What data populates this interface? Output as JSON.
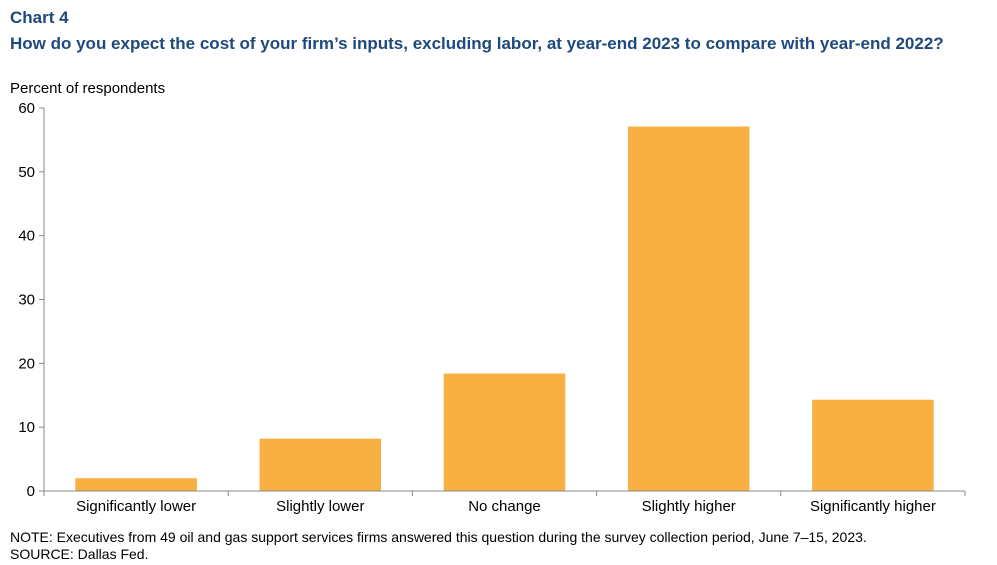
{
  "header": {
    "chart_label": "Chart 4",
    "title": "How do you expect the cost of your firm’s inputs, excluding labor, at year-end 2023 to compare with year-end 2022?"
  },
  "footer": {
    "note": "NOTE: Executives from 49 oil and gas support services firms answered this question during the survey collection period, June 7–15, 2023.",
    "source": "SOURCE: Dallas Fed."
  },
  "colors": {
    "bar": "#f8b043",
    "title": "#1f497d",
    "axis": "#888888"
  },
  "chart_data": {
    "type": "bar",
    "title": "How do you expect the cost of your firm’s inputs, excluding labor, at year-end 2023 to compare with year-end 2022?",
    "ylabel": "Percent of respondents",
    "xlabel": "",
    "categories": [
      "Significantly lower",
      "Slightly lower",
      "No change",
      "Slightly higher",
      "Significantly higher"
    ],
    "values": [
      2,
      8.2,
      18.4,
      57.1,
      14.3
    ],
    "ylim": [
      0,
      60
    ],
    "yticks": [
      0,
      10,
      20,
      30,
      40,
      50,
      60
    ],
    "grid": false,
    "legend": "none"
  }
}
